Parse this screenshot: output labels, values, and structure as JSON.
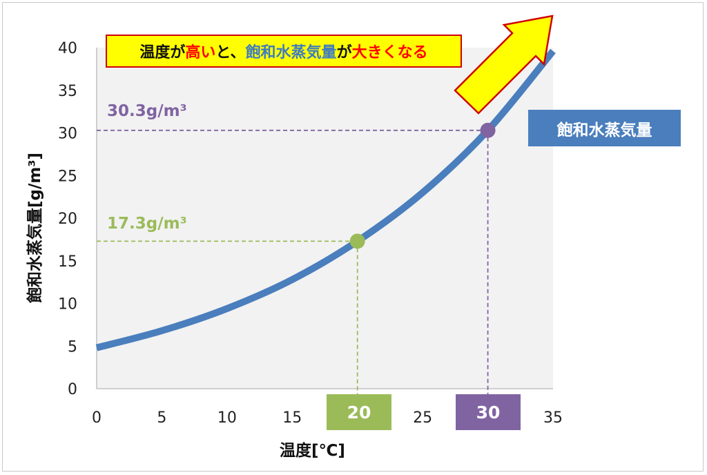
{
  "chart_data": {
    "type": "line",
    "xlabel": "温度[℃]",
    "ylabel": "飽和水蒸気量[g/m³]",
    "xlim": [
      0,
      35
    ],
    "ylim": [
      0,
      40
    ],
    "x_ticks": [
      0,
      5,
      10,
      15,
      20,
      25,
      30,
      35
    ],
    "y_ticks": [
      0,
      5,
      10,
      15,
      20,
      25,
      30,
      35,
      40
    ],
    "x_tick_labels": [
      "0",
      "5",
      "10",
      "15",
      "20",
      "25",
      "30",
      "35"
    ],
    "y_tick_labels": [
      "0",
      "5",
      "10",
      "15",
      "20",
      "25",
      "30",
      "35",
      "40"
    ],
    "series": [
      {
        "name": "飽和水蒸気量",
        "color": "#4a7ebd",
        "x": [
          0,
          5,
          10,
          15,
          20,
          25,
          30,
          35
        ],
        "y": [
          4.8,
          6.8,
          9.4,
          12.8,
          17.3,
          23.0,
          30.3,
          39.6
        ]
      }
    ],
    "highlights": [
      {
        "x": 20,
        "y": 17.3,
        "value_label": "17.3g/m³",
        "x_label": "20",
        "color": "#9bbb59"
      },
      {
        "x": 30,
        "y": 30.3,
        "value_label": "30.3g/m³",
        "x_label": "30",
        "color": "#8064a2"
      }
    ],
    "callout": {
      "parts": [
        {
          "text": "温度が",
          "style": "dark"
        },
        {
          "text": "高い",
          "style": "red"
        },
        {
          "text": "と、",
          "style": "dark"
        },
        {
          "text": "飽和水蒸気量",
          "style": "blue"
        },
        {
          "text": "が",
          "style": "dark"
        },
        {
          "text": "大きくなる",
          "style": "red"
        }
      ],
      "fill": "#ffff00",
      "border": "#d00000"
    },
    "arrow_color": "#ffff00",
    "plot_background": "#f2f2f2",
    "grid": false
  }
}
